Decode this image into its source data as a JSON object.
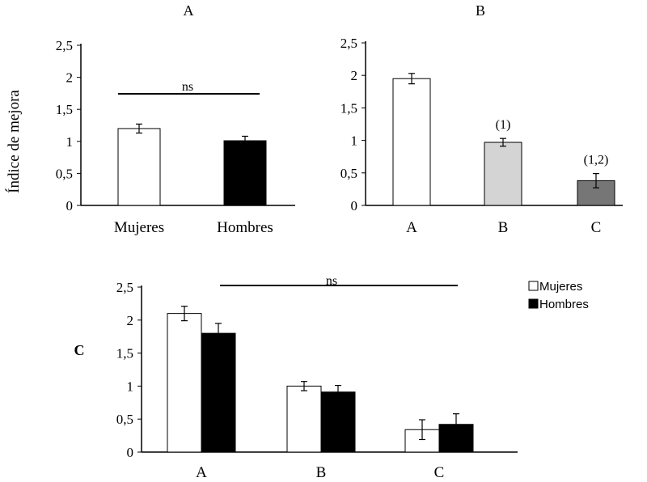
{
  "chart_data": [
    {
      "type": "bar",
      "title": "A",
      "ylabel": "Índice de mejora",
      "ylim": [
        0,
        2.5
      ],
      "yticks": [
        "0",
        "0,5",
        "1",
        "1,5",
        "2",
        "2,5"
      ],
      "categories": [
        "Mujeres",
        "Hombres"
      ],
      "values": [
        1.2,
        1.01
      ],
      "errors": [
        0.07,
        0.07
      ],
      "colors": [
        "#ffffff",
        "#000000"
      ],
      "annotation": "ns"
    },
    {
      "type": "bar",
      "title": "B",
      "ylim": [
        0,
        2.5
      ],
      "yticks": [
        "0",
        "0,5",
        "1",
        "1,5",
        "2",
        "2,5"
      ],
      "categories": [
        "A",
        "B",
        "C"
      ],
      "values": [
        1.95,
        0.97,
        0.38
      ],
      "errors": [
        0.08,
        0.06,
        0.11
      ],
      "colors": [
        "#ffffff",
        "#d4d4d4",
        "#767676"
      ],
      "labels": [
        "",
        "(1)",
        "(1,2)"
      ]
    },
    {
      "type": "bar",
      "title": "C",
      "ylim": [
        0,
        2.5
      ],
      "yticks": [
        "0",
        "0,5",
        "1",
        "1,5",
        "2",
        "2,5"
      ],
      "categories": [
        "A",
        "B",
        "C"
      ],
      "series": [
        {
          "name": "Mujeres",
          "values": [
            2.1,
            1.0,
            0.34
          ],
          "errors": [
            0.11,
            0.07,
            0.15
          ],
          "color": "#ffffff"
        },
        {
          "name": "Hombres",
          "values": [
            1.8,
            0.91,
            0.42
          ],
          "errors": [
            0.15,
            0.1,
            0.16
          ],
          "color": "#000000"
        }
      ],
      "legend_position": "top-right",
      "annotation": "ns"
    }
  ]
}
